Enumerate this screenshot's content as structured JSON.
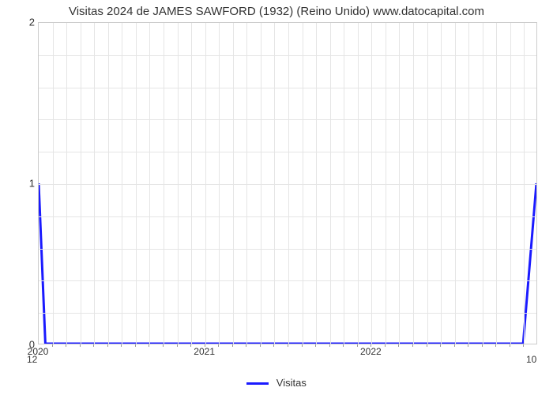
{
  "chart": {
    "type": "line",
    "title": "Visitas 2024 de JAMES SAWFORD (1932) (Reino Unido) www.datocapital.com",
    "title_fontsize": 15,
    "title_color": "#333333",
    "background_color": "#ffffff",
    "plot_border_color": "#cccccc",
    "grid_color": "#e5e5e5",
    "line_color": "#1a1aff",
    "line_width": 3,
    "xlim": [
      2020,
      2023
    ],
    "ylim": [
      0,
      2
    ],
    "x_major_ticks": [
      2020,
      2021,
      2022
    ],
    "x_minor_ticks_per_major": 12,
    "y_ticks": [
      0,
      1,
      2
    ],
    "y_minor_per_major": 5,
    "x_label_0": "2020",
    "x_label_1": "2021",
    "x_label_2": "2022",
    "y_label_0": "0",
    "y_label_1": "1",
    "y_label_2": "2",
    "start_value_label": "12",
    "end_value_label": "10",
    "legend_label": "Visitas",
    "data_x": [
      2020.0,
      2020.04,
      2022.92,
      2023.0
    ],
    "data_y": [
      1.0,
      0.0,
      0.0,
      1.0
    ]
  }
}
